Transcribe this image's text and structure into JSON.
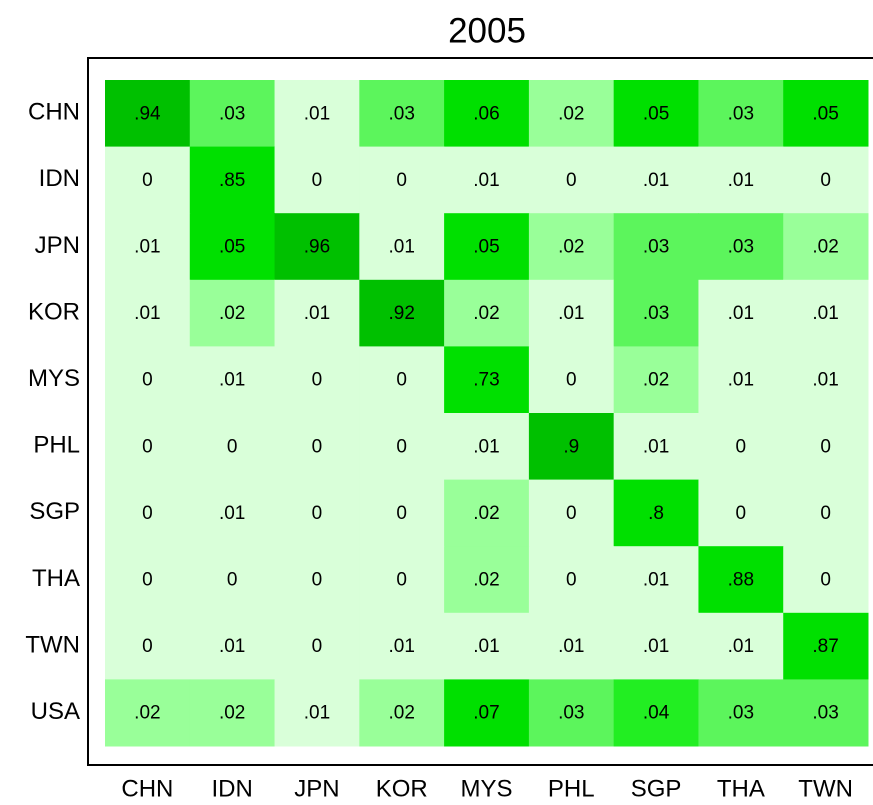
{
  "chart_data": {
    "type": "heatmap",
    "title": "2005",
    "x_categories": [
      "CHN",
      "IDN",
      "JPN",
      "KOR",
      "MYS",
      "PHL",
      "SGP",
      "THA",
      "TWN"
    ],
    "y_categories": [
      "CHN",
      "IDN",
      "JPN",
      "KOR",
      "MYS",
      "PHL",
      "SGP",
      "THA",
      "TWN",
      "USA"
    ],
    "values": [
      [
        0.94,
        0.03,
        0.01,
        0.03,
        0.06,
        0.02,
        0.05,
        0.03,
        0.05
      ],
      [
        0,
        0.85,
        0,
        0,
        0.01,
        0,
        0.01,
        0.01,
        0
      ],
      [
        0.01,
        0.05,
        0.96,
        0.01,
        0.05,
        0.02,
        0.03,
        0.03,
        0.02
      ],
      [
        0.01,
        0.02,
        0.01,
        0.92,
        0.02,
        0.01,
        0.03,
        0.01,
        0.01
      ],
      [
        0,
        0.01,
        0,
        0,
        0.73,
        0,
        0.02,
        0.01,
        0.01
      ],
      [
        0,
        0,
        0,
        0,
        0.01,
        0.9,
        0.01,
        0,
        0
      ],
      [
        0,
        0.01,
        0,
        0,
        0.02,
        0,
        0.8,
        0,
        0
      ],
      [
        0,
        0,
        0,
        0,
        0.02,
        0,
        0.01,
        0.88,
        0
      ],
      [
        0,
        0.01,
        0,
        0.01,
        0.01,
        0.01,
        0.01,
        0.01,
        0.87
      ],
      [
        0.02,
        0.02,
        0.01,
        0.02,
        0.07,
        0.03,
        0.04,
        0.03,
        0.03
      ]
    ],
    "value_labels": [
      [
        ".94",
        ".03",
        ".01",
        ".03",
        ".06",
        ".02",
        ".05",
        ".03",
        ".05"
      ],
      [
        "0",
        ".85",
        "0",
        "0",
        ".01",
        "0",
        ".01",
        ".01",
        "0"
      ],
      [
        ".01",
        ".05",
        ".96",
        ".01",
        ".05",
        ".02",
        ".03",
        ".03",
        ".02"
      ],
      [
        ".01",
        ".02",
        ".01",
        ".92",
        ".02",
        ".01",
        ".03",
        ".01",
        ".01"
      ],
      [
        "0",
        ".01",
        "0",
        "0",
        ".73",
        "0",
        ".02",
        ".01",
        ".01"
      ],
      [
        "0",
        "0",
        "0",
        "0",
        ".01",
        ".9",
        ".01",
        "0",
        "0"
      ],
      [
        "0",
        ".01",
        "0",
        "0",
        ".02",
        "0",
        ".8",
        "0",
        "0"
      ],
      [
        "0",
        "0",
        "0",
        "0",
        ".02",
        "0",
        ".01",
        ".88",
        "0"
      ],
      [
        "0",
        ".01",
        "0",
        ".01",
        ".01",
        ".01",
        ".01",
        ".01",
        ".87"
      ],
      [
        ".02",
        ".02",
        ".01",
        ".02",
        ".07",
        ".03",
        ".04",
        ".03",
        ".03"
      ]
    ],
    "colors": [
      [
        "#00c000",
        "#5cf55c",
        "#d9ffd9",
        "#5cf55c",
        "#00e000",
        "#99ff99",
        "#00e000",
        "#5cf55c",
        "#00e000"
      ],
      [
        "#d9ffd9",
        "#00e000",
        "#d9ffd9",
        "#d9ffd9",
        "#d9ffd9",
        "#d9ffd9",
        "#d9ffd9",
        "#d9ffd9",
        "#d9ffd9"
      ],
      [
        "#d9ffd9",
        "#00e000",
        "#00c000",
        "#d9ffd9",
        "#00e000",
        "#99ff99",
        "#5cf55c",
        "#5cf55c",
        "#99ff99"
      ],
      [
        "#d9ffd9",
        "#99ff99",
        "#d9ffd9",
        "#00c000",
        "#99ff99",
        "#d9ffd9",
        "#5cf55c",
        "#d9ffd9",
        "#d9ffd9"
      ],
      [
        "#d9ffd9",
        "#d9ffd9",
        "#d9ffd9",
        "#d9ffd9",
        "#00e000",
        "#d9ffd9",
        "#99ff99",
        "#d9ffd9",
        "#d9ffd9"
      ],
      [
        "#d9ffd9",
        "#d9ffd9",
        "#d9ffd9",
        "#d9ffd9",
        "#d9ffd9",
        "#00c000",
        "#d9ffd9",
        "#d9ffd9",
        "#d9ffd9"
      ],
      [
        "#d9ffd9",
        "#d9ffd9",
        "#d9ffd9",
        "#d9ffd9",
        "#99ff99",
        "#d9ffd9",
        "#00e000",
        "#d9ffd9",
        "#d9ffd9"
      ],
      [
        "#d9ffd9",
        "#d9ffd9",
        "#d9ffd9",
        "#d9ffd9",
        "#99ff99",
        "#d9ffd9",
        "#d9ffd9",
        "#00e000",
        "#d9ffd9"
      ],
      [
        "#d9ffd9",
        "#d9ffd9",
        "#d9ffd9",
        "#d9ffd9",
        "#d9ffd9",
        "#d9ffd9",
        "#d9ffd9",
        "#d9ffd9",
        "#00e000"
      ],
      [
        "#99ff99",
        "#99ff99",
        "#d9ffd9",
        "#99ff99",
        "#00e000",
        "#5cf55c",
        "#22ee22",
        "#5cf55c",
        "#5cf55c"
      ]
    ]
  }
}
